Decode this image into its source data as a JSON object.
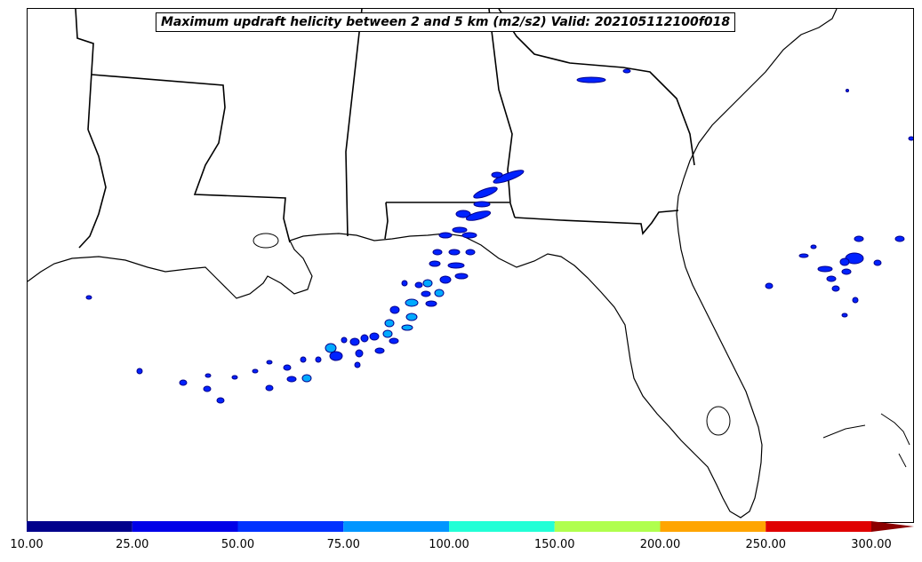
{
  "map": {
    "title": "Maximum updraft helicity between 2 and 5 km (m2/s2) Valid: 202105112100f018"
  },
  "colorbar": {
    "labels": [
      "10.00",
      "25.00",
      "50.00",
      "75.00",
      "100.00",
      "150.00",
      "200.00",
      "250.00",
      "300.00"
    ],
    "colors": [
      "#00008b",
      "#0000e8",
      "#0032ff",
      "#0096ff",
      "#22ffd6",
      "#b0ff4e",
      "#ffa500",
      "#e00000"
    ],
    "extend_color": "#8b0000"
  },
  "features": {
    "coastline": "black",
    "state_borders": "black",
    "helicity_blobs_color": "#0000ff"
  }
}
